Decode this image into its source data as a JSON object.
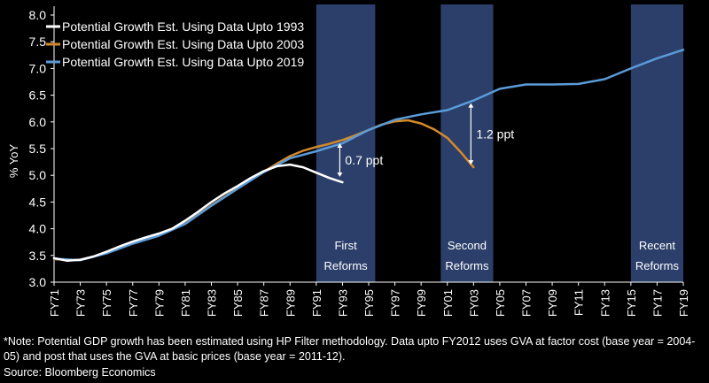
{
  "colors": {
    "background": "#000000",
    "band": "#2b3f6a",
    "axis": "#ffffff",
    "text": "#ffffff"
  },
  "chart_data": {
    "type": "line",
    "title": "",
    "xlabel": "",
    "ylabel": "% YoY",
    "ylim": [
      3.0,
      8.0
    ],
    "yticks": [
      "3.0",
      "3.5",
      "4.0",
      "4.5",
      "5.0",
      "5.5",
      "6.0",
      "6.5",
      "7.0",
      "7.5",
      "8.0"
    ],
    "xlim": [
      1971,
      2019
    ],
    "xticks": [
      "FY71",
      "FY73",
      "FY75",
      "FY77",
      "FY79",
      "FY81",
      "FY83",
      "FY85",
      "FY87",
      "FY89",
      "FY91",
      "FY93",
      "FY95",
      "FY97",
      "FY99",
      "FY01",
      "FY03",
      "FY05",
      "FY07",
      "FY09",
      "FY11",
      "FY13",
      "FY15",
      "FY17",
      "FY19"
    ],
    "legend_position": "top-left",
    "grid": false,
    "series": [
      {
        "name": "Potential Growth Est. Using Data Upto 1993",
        "color": "#ffffff",
        "x": [
          1971,
          1972,
          1973,
          1974,
          1975,
          1976,
          1977,
          1978,
          1979,
          1980,
          1981,
          1982,
          1983,
          1984,
          1985,
          1986,
          1987,
          1988,
          1989,
          1990,
          1991,
          1992,
          1993
        ],
        "y": [
          3.45,
          3.4,
          3.42,
          3.48,
          3.57,
          3.67,
          3.76,
          3.84,
          3.91,
          4.0,
          4.15,
          4.32,
          4.5,
          4.66,
          4.8,
          4.95,
          5.08,
          5.17,
          5.2,
          5.15,
          5.05,
          4.95,
          4.87
        ]
      },
      {
        "name": "Potential Growth Est. Using Data Upto 2003",
        "color": "#d4892a",
        "x": [
          1971,
          1973,
          1975,
          1977,
          1979,
          1981,
          1983,
          1985,
          1987,
          1988,
          1989,
          1990,
          1991,
          1992,
          1993,
          1994,
          1995,
          1996,
          1997,
          1998,
          1999,
          2000,
          2001,
          2002,
          2003
        ],
        "y": [
          3.43,
          3.41,
          3.55,
          3.73,
          3.88,
          4.1,
          4.44,
          4.76,
          5.07,
          5.22,
          5.36,
          5.46,
          5.53,
          5.59,
          5.66,
          5.75,
          5.85,
          5.95,
          6.01,
          6.03,
          5.97,
          5.86,
          5.7,
          5.44,
          5.15
        ]
      },
      {
        "name": "Potential Growth Est. Using Data Upto 2019",
        "color": "#5b9bd8",
        "x": [
          1971,
          1973,
          1975,
          1977,
          1979,
          1981,
          1983,
          1985,
          1987,
          1989,
          1991,
          1993,
          1995,
          1997,
          1999,
          2001,
          2003,
          2005,
          2007,
          2009,
          2011,
          2013,
          2015,
          2017,
          2019
        ],
        "y": [
          3.44,
          3.41,
          3.54,
          3.72,
          3.87,
          4.09,
          4.43,
          4.75,
          5.06,
          5.32,
          5.45,
          5.6,
          5.85,
          6.04,
          6.14,
          6.22,
          6.4,
          6.62,
          6.7,
          6.7,
          6.71,
          6.8,
          7.0,
          7.19,
          7.35
        ]
      }
    ],
    "bands": [
      {
        "label_line1": "First",
        "label_line2": "Reforms",
        "x_start": 1991,
        "x_end": 1995.5
      },
      {
        "label_line1": "Second",
        "label_line2": "Reforms",
        "x_start": 2000.5,
        "x_end": 2004.5
      },
      {
        "label_line1": "Recent",
        "label_line2": "Reforms",
        "x_start": 2015,
        "x_end": 2019
      }
    ],
    "annotations": [
      {
        "label": "0.7 ppt",
        "x": 1993,
        "y_from": 4.97,
        "y_to": 5.6
      },
      {
        "label": "1.2 ppt",
        "x": 2003,
        "y_from": 5.2,
        "y_to": 6.35
      }
    ]
  },
  "footer": {
    "note": "*Note: Potential GDP growth has been estimated using HP Filter methodology. Data upto FY2012 uses GVA at factor cost (base year = 2004-05) and post that uses the GVA at basic prices (base year = 2011-12).",
    "source": "Source: Bloomberg Economics"
  }
}
